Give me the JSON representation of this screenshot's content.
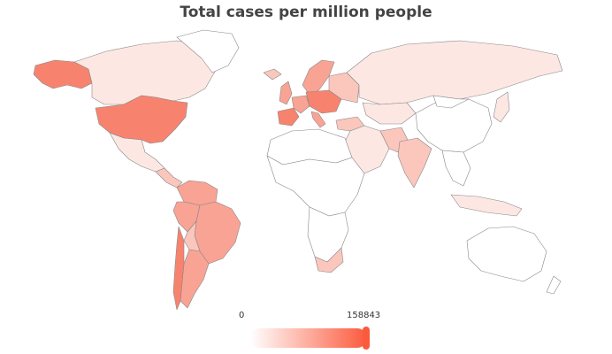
{
  "map": {
    "title": "Total cases per million people",
    "colors": {
      "none": "#ffffff",
      "low": "#fde7e3",
      "mid": "#fbc6bc",
      "high": "#f9a394",
      "top": "#f7836f",
      "border": "#888888"
    }
  },
  "legend": {
    "min_label": "0",
    "max_label": "158843",
    "color_start": "#ffffff",
    "color_end": "#fb5a3d"
  }
}
